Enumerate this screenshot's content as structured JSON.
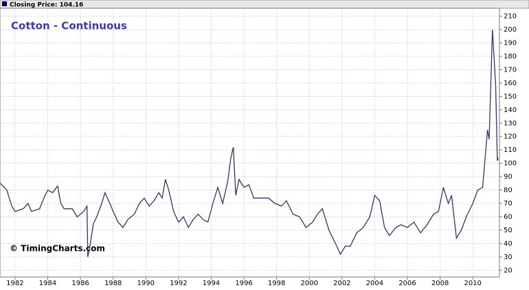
{
  "chart_data": {
    "type": "line",
    "header": "Closing Price: 104.16",
    "title": "Cotton - Continuous",
    "watermark": "© TimingCharts.com",
    "series": [
      {
        "color": "#333366",
        "x": [
          1981.1,
          1981.5,
          1981.8,
          1982.0,
          1982.5,
          1982.8,
          1983.0,
          1983.5,
          1983.8,
          1984.0,
          1984.3,
          1984.6,
          1984.8,
          1985.0,
          1985.5,
          1985.8,
          1986.2,
          1986.4,
          1986.45,
          1986.6,
          1986.8,
          1987.0,
          1987.3,
          1987.5,
          1987.8,
          1988.0,
          1988.3,
          1988.6,
          1988.9,
          1989.3,
          1989.6,
          1989.9,
          1990.2,
          1990.5,
          1990.8,
          1991.0,
          1991.2,
          1991.4,
          1991.7,
          1992.0,
          1992.3,
          1992.6,
          1992.9,
          1993.2,
          1993.5,
          1993.8,
          1994.1,
          1994.4,
          1994.7,
          1995.0,
          1995.2,
          1995.35,
          1995.5,
          1995.7,
          1996.0,
          1996.3,
          1996.6,
          1997.0,
          1997.5,
          1997.9,
          1998.3,
          1998.6,
          1999.0,
          1999.4,
          1999.8,
          2000.2,
          2000.5,
          2000.8,
          2001.2,
          2001.6,
          2001.9,
          2002.2,
          2002.5,
          2002.9,
          2003.3,
          2003.7,
          2004.0,
          2004.3,
          2004.6,
          2004.9,
          2005.3,
          2005.6,
          2006.0,
          2006.4,
          2006.8,
          2007.2,
          2007.6,
          2007.9,
          2008.2,
          2008.5,
          2008.7,
          2009.0,
          2009.3,
          2009.6,
          2010.0,
          2010.3,
          2010.6,
          2010.9,
          2011.0,
          2011.2,
          2011.4,
          2011.5,
          2011.55
        ],
        "values": [
          85,
          80,
          68,
          64,
          66,
          70,
          64,
          66,
          75,
          80,
          78,
          83,
          70,
          66,
          66,
          60,
          64,
          68,
          30,
          40,
          55,
          60,
          70,
          78,
          70,
          64,
          56,
          52,
          58,
          62,
          70,
          74,
          68,
          72,
          78,
          74,
          88,
          80,
          64,
          56,
          60,
          52,
          58,
          62,
          58,
          56,
          70,
          82,
          70,
          86,
          104,
          112,
          76,
          88,
          82,
          84,
          74,
          74,
          74,
          70,
          68,
          72,
          62,
          60,
          52,
          56,
          62,
          66,
          50,
          40,
          32,
          38,
          38,
          48,
          52,
          60,
          76,
          72,
          52,
          46,
          52,
          54,
          52,
          56,
          48,
          54,
          62,
          64,
          82,
          70,
          76,
          44,
          50,
          60,
          70,
          80,
          82,
          125,
          118,
          200,
          158,
          102,
          104
        ]
      }
    ],
    "xlim": [
      1981.08,
      2011.63
    ],
    "xticks": [
      1982,
      1984,
      1986,
      1988,
      1990,
      1992,
      1994,
      1996,
      1998,
      2000,
      2002,
      2004,
      2006,
      2008,
      2010
    ],
    "ylim": [
      15,
      216
    ],
    "yticks": [
      20,
      30,
      40,
      50,
      60,
      70,
      80,
      90,
      100,
      110,
      120,
      130,
      140,
      150,
      160,
      170,
      180,
      190,
      200,
      210
    ],
    "grid": true
  }
}
